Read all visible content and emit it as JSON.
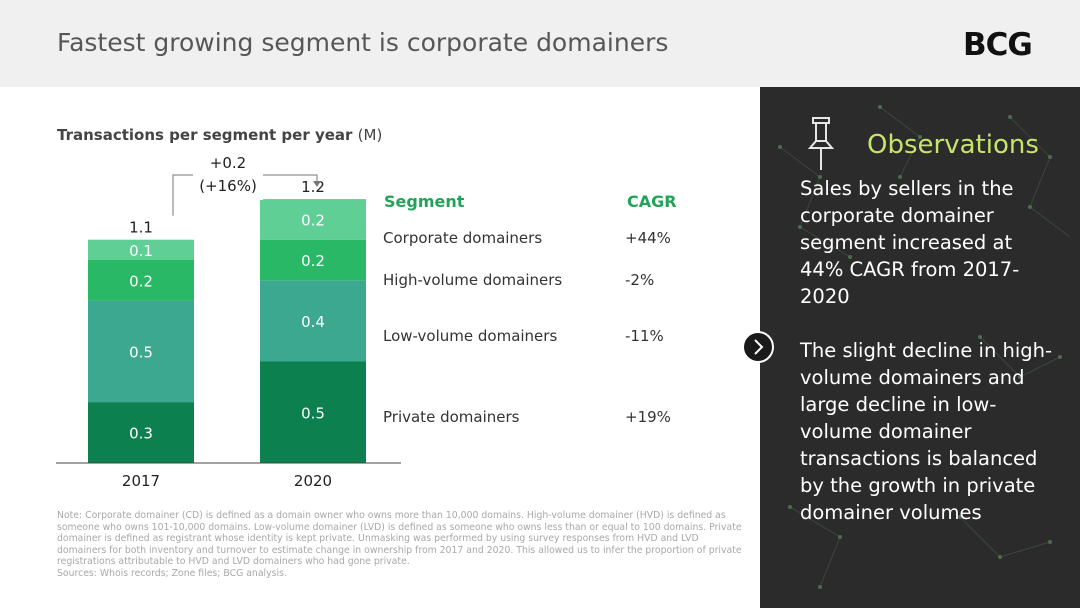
{
  "header": {
    "title": "Fastest growing segment is corporate domainers",
    "logo_text": "BCG"
  },
  "chart_title": {
    "main": "Transactions per segment per year",
    "unit": "(M)"
  },
  "chart_data": {
    "type": "bar",
    "stacked": true,
    "categories": [
      "2017",
      "2020"
    ],
    "series": [
      {
        "name": "Private domainers",
        "values": [
          0.3,
          0.5
        ],
        "labels": [
          "0.3",
          "0.5"
        ],
        "color": "#0d8050"
      },
      {
        "name": "Low-volume domainers",
        "values": [
          0.5,
          0.4
        ],
        "labels": [
          "0.5",
          "0.4"
        ],
        "color": "#3ca88f"
      },
      {
        "name": "High-volume domainers",
        "values": [
          0.2,
          0.2
        ],
        "labels": [
          "0.2",
          "0.2"
        ],
        "color": "#29b865"
      },
      {
        "name": "Corporate domainers",
        "values": [
          0.1,
          0.2
        ],
        "labels": [
          "0.1",
          "0.2"
        ],
        "color": "#5fcf95"
      }
    ],
    "totals": [
      "1.1",
      "1.2"
    ],
    "change_annotation": {
      "line1": "+0.2",
      "line2": "(+16%)"
    },
    "ylim": [
      0,
      1.25
    ]
  },
  "segments_table": {
    "segment_header": "Segment",
    "cagr_header": "CAGR",
    "rows": [
      {
        "segment": "Corporate domainers",
        "cagr": "+44%"
      },
      {
        "segment": "High-volume domainers",
        "cagr": "-2%"
      },
      {
        "segment": "Low-volume domainers",
        "cagr": "-11%"
      },
      {
        "segment": "Private domainers",
        "cagr": "+19%"
      }
    ]
  },
  "notes": {
    "note": "Note: Corporate domainer (CD) is defined as a domain owner who owns more than 10,000 domains. High-volume domainer (HVD) is defined as someone who owns 101-10,000 domains. Low-volume domainer (LVD) is defined as someone who owns less than or equal to 100 domains. Private domainer is defined as registrant whose identity is kept private. Unmasking was performed by using survey responses from HVD and LVD domainers for both inventory and turnover to estimate change in ownership from 2017 and 2020. This allowed us to infer the proportion of private registrations attributable to HVD and LVD domainers who had gone private.",
    "sources": "Sources: Whois records; Zone files; BCG analysis."
  },
  "observations": {
    "title": "Observations",
    "paragraph1": "Sales by sellers in the corporate domainer segment increased at 44% CAGR from 2017-2020",
    "paragraph2": "The slight decline in high-volume domainers and large decline in low-volume domainer transactions is balanced by the growth in private domainer volumes"
  },
  "colors": {
    "panel_bg": "#2b2b2b",
    "accent": "#c7e36a",
    "segment_header": "#23a35a"
  },
  "icons": {
    "pin": "pushpin-icon",
    "next": "chevron-right-icon"
  }
}
